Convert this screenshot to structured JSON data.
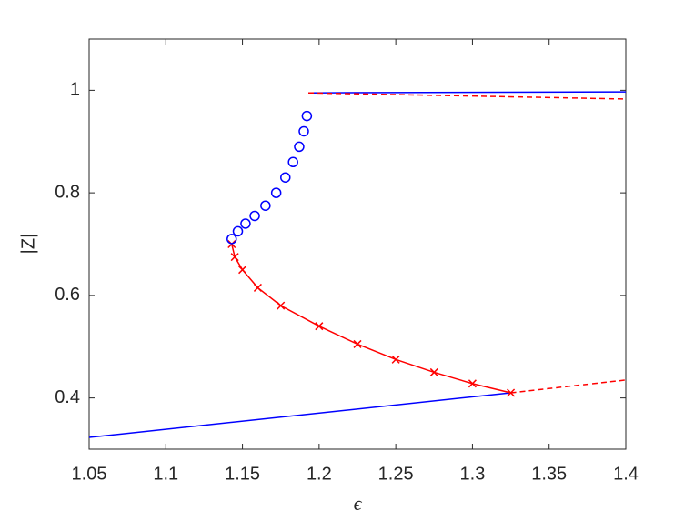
{
  "chart_data": {
    "type": "line",
    "xlabel": "ϵ",
    "ylabel": "|Z|",
    "xlim": [
      1.05,
      1.4
    ],
    "xticks": [
      1.05,
      1.1,
      1.15,
      1.2,
      1.25,
      1.3,
      1.35,
      1.4
    ],
    "ylim": [
      0.3,
      1.1
    ],
    "yticks": [
      0.4,
      0.6,
      0.8,
      1
    ],
    "grid": false,
    "series": [
      {
        "color": "#0000ff",
        "line": "solid",
        "marker": "none",
        "x": [
          1.05,
          1.325
        ],
        "values": [
          0.323,
          0.41
        ]
      },
      {
        "color": "#ff0000",
        "line": "dashed",
        "marker": "none",
        "x": [
          1.325,
          1.4
        ],
        "values": [
          0.41,
          0.435
        ]
      },
      {
        "color": "#0000ff",
        "line": "solid",
        "marker": "none",
        "x": [
          1.193,
          1.4
        ],
        "values": [
          0.995,
          0.997
        ]
      },
      {
        "color": "#ff0000",
        "line": "dashed",
        "marker": "none",
        "x": [
          1.193,
          1.4
        ],
        "values": [
          0.995,
          0.983
        ]
      },
      {
        "color": "#ff0000",
        "line": "solid",
        "marker": "x",
        "x": [
          1.325,
          1.3,
          1.275,
          1.25,
          1.225,
          1.2,
          1.175,
          1.16,
          1.15,
          1.145,
          1.143
        ],
        "values": [
          0.41,
          0.428,
          0.45,
          0.475,
          0.505,
          0.54,
          0.58,
          0.615,
          0.65,
          0.675,
          0.7
        ]
      },
      {
        "color": "#0000ff",
        "line": "none",
        "marker": "o",
        "x": [
          1.143,
          1.147,
          1.152,
          1.158,
          1.165,
          1.172,
          1.178,
          1.183,
          1.187,
          1.19,
          1.192
        ],
        "values": [
          0.71,
          0.725,
          0.74,
          0.755,
          0.775,
          0.8,
          0.83,
          0.86,
          0.89,
          0.92,
          0.95
        ]
      }
    ]
  }
}
